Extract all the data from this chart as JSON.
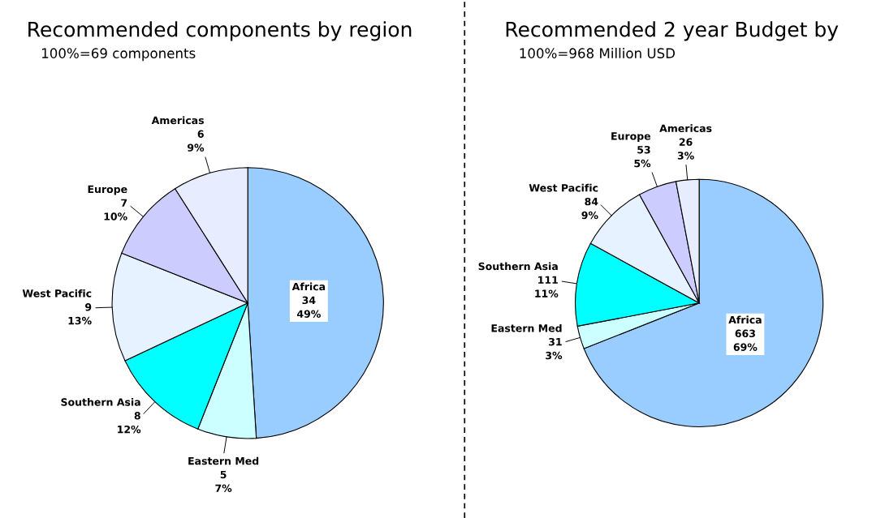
{
  "chart_data": [
    {
      "type": "pie",
      "title": "Recommended components by region",
      "subtitle": "100%=69 components",
      "categories": [
        "Africa",
        "Eastern Med",
        "Southern Asia",
        "West Pacific",
        "Europe",
        "Americas"
      ],
      "values": [
        49,
        7,
        12,
        13,
        10,
        9
      ],
      "value_labels": [
        "34\n49%",
        "5\n7%",
        "8\n12%",
        "9\n13%",
        "7\n10%",
        "6\n9%"
      ],
      "colors": [
        "#99ccff",
        "#ccffff",
        "#00ffff",
        "#e6f2ff",
        "#ccccff",
        "#e8ecff"
      ],
      "legend": false
    },
    {
      "type": "pie",
      "title": "Recommended 2 year Budget by",
      "subtitle": "100%=968 Million USD",
      "categories": [
        "Africa",
        "Eastern Med",
        "Southern Asia",
        "West Pacific",
        "Europe",
        "Americas"
      ],
      "values": [
        69,
        3,
        11,
        9,
        5,
        3
      ],
      "value_labels": [
        "663\n69%",
        "31\n3%",
        "111\n11%",
        "84\n9%",
        "53\n5%",
        "26\n3%"
      ],
      "colors": [
        "#99ccff",
        "#ccffff",
        "#00ffff",
        "#e6f2ff",
        "#ccccff",
        "#e8ecff"
      ],
      "legend": false
    }
  ]
}
